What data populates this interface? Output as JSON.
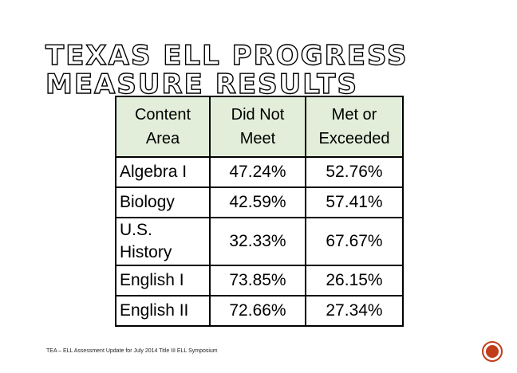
{
  "slide": {
    "title_line1": "TEXAS ELL PROGRESS",
    "title_line2": "MEASURE RESULTS",
    "footer": "TEA – ELL Assessment Update for July 2014 Title III ELL Symposium"
  },
  "table": {
    "headers": [
      {
        "line1": "Content",
        "line2": "Area"
      },
      {
        "line1": "Did Not",
        "line2": "Meet"
      },
      {
        "line1": "Met or",
        "line2": "Exceeded"
      }
    ],
    "rows": [
      {
        "area": "Algebra I",
        "did_not_meet": "47.24%",
        "met_or_exceeded": "52.76%"
      },
      {
        "area_line1": "Biology",
        "did_not_meet": "42.59%",
        "met_or_exceeded": "57.41%"
      },
      {
        "area_line1": "U.S.",
        "area_line2": "History",
        "did_not_meet": "32.33%",
        "met_or_exceeded": "67.67%"
      },
      {
        "area": "English I",
        "did_not_meet": "73.85%",
        "met_or_exceeded": "26.15%"
      },
      {
        "area": "English II",
        "did_not_meet": "72.66%",
        "met_or_exceeded": "27.34%"
      }
    ]
  },
  "colors": {
    "header_fill": "#e2eed9",
    "nav_accent": "#c23d1b"
  },
  "icons": {
    "nav": "circle-button-icon"
  }
}
